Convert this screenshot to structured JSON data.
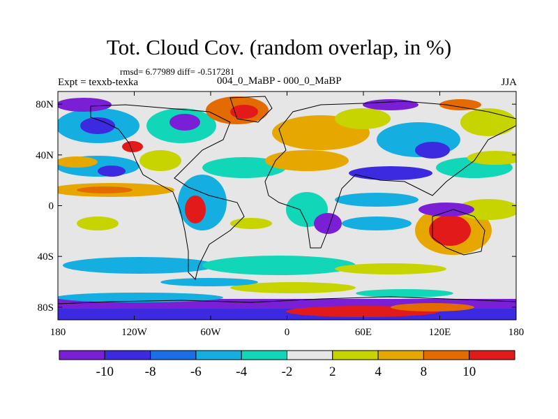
{
  "title": "Tot. Cloud Cov. (random overlap, in %)",
  "stats": "rmsd= 6.77989 diff= -0.517281",
  "left_label": "Expt = texxb-texka",
  "center_label": "004_0_MaBP - 000_0_MaBP",
  "right_label": "JJA",
  "map": {
    "projection": "cylindrical-equidistant",
    "lon_range": [
      -180,
      180
    ],
    "lat_range": [
      -90,
      90
    ],
    "lon_ticks": [
      {
        "value": -180,
        "label": "180"
      },
      {
        "value": -120,
        "label": "120W"
      },
      {
        "value": -60,
        "label": "60W"
      },
      {
        "value": 0,
        "label": "0"
      },
      {
        "value": 60,
        "label": "60E"
      },
      {
        "value": 120,
        "label": "120E"
      },
      {
        "value": 180,
        "label": "180"
      }
    ],
    "lat_ticks": [
      {
        "value": 80,
        "label": "80N"
      },
      {
        "value": 40,
        "label": "40N"
      },
      {
        "value": 0,
        "label": "0"
      },
      {
        "value": -40,
        "label": "40S"
      },
      {
        "value": -80,
        "label": "80S"
      }
    ],
    "background_color": "#e6e6e6",
    "coastline_color": "#000000"
  },
  "colorbar": {
    "colors": [
      "#7a1fd6",
      "#3c2ae0",
      "#1a6ee8",
      "#14aee0",
      "#12d6b8",
      "#e6e6e6",
      "#c8d400",
      "#e6a800",
      "#e36b00",
      "#e31a1a"
    ],
    "labels": [
      "-10",
      "-8",
      "-6",
      "-4",
      "-2",
      "2",
      "4",
      "8",
      "10"
    ]
  }
}
